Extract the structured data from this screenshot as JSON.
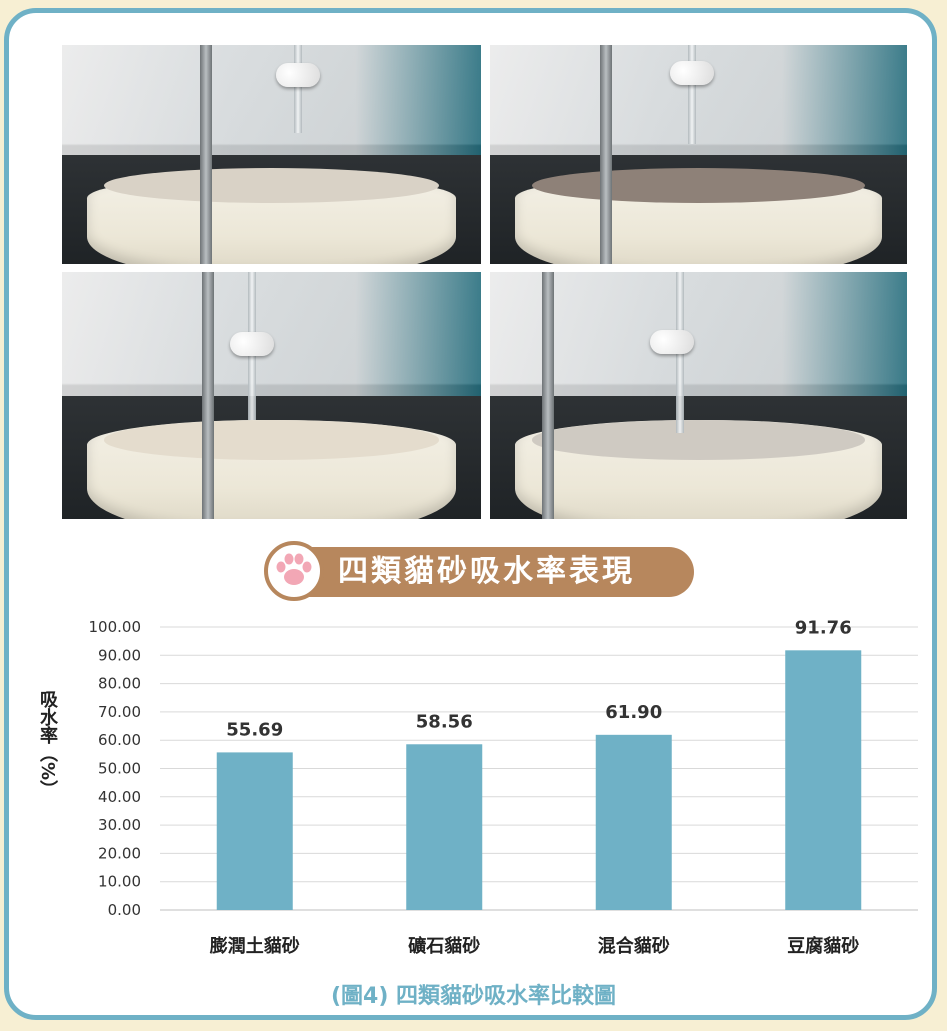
{
  "photos": [
    {
      "name": "bentonite-litter-photo",
      "litter_color": "#d9d2c6"
    },
    {
      "name": "mineral-litter-photo",
      "litter_color": "#8e8178"
    },
    {
      "name": "mixed-litter-photo",
      "litter_color": "#e4dccd"
    },
    {
      "name": "tofu-litter-photo",
      "litter_color": "#cfcac2"
    }
  ],
  "badge": {
    "title": "四類貓砂吸水率表現",
    "icon": "paw-icon"
  },
  "caption": "(圖4) 四類貓砂吸水率比較圖",
  "colors": {
    "frame": "#6fb1c6",
    "bar": "#6fb1c6",
    "badge": "#b7875d",
    "paw_pink": "#f2a7b5",
    "background": "#f7efd3"
  },
  "chart_data": {
    "type": "bar",
    "categories": [
      "膨潤土貓砂",
      "礦石貓砂",
      "混合貓砂",
      "豆腐貓砂"
    ],
    "values": [
      55.69,
      58.56,
      61.9,
      91.76
    ],
    "value_labels": [
      "55.69",
      "58.56",
      "61.90",
      "91.76"
    ],
    "title": "",
    "xlabel": "",
    "ylabel": "吸水率（%）",
    "ylim": [
      0,
      100
    ],
    "yticks": [
      "0.00",
      "10.00",
      "20.00",
      "30.00",
      "40.00",
      "50.00",
      "60.00",
      "70.00",
      "80.00",
      "90.00",
      "100.00"
    ],
    "grid": true,
    "legend": "none"
  }
}
